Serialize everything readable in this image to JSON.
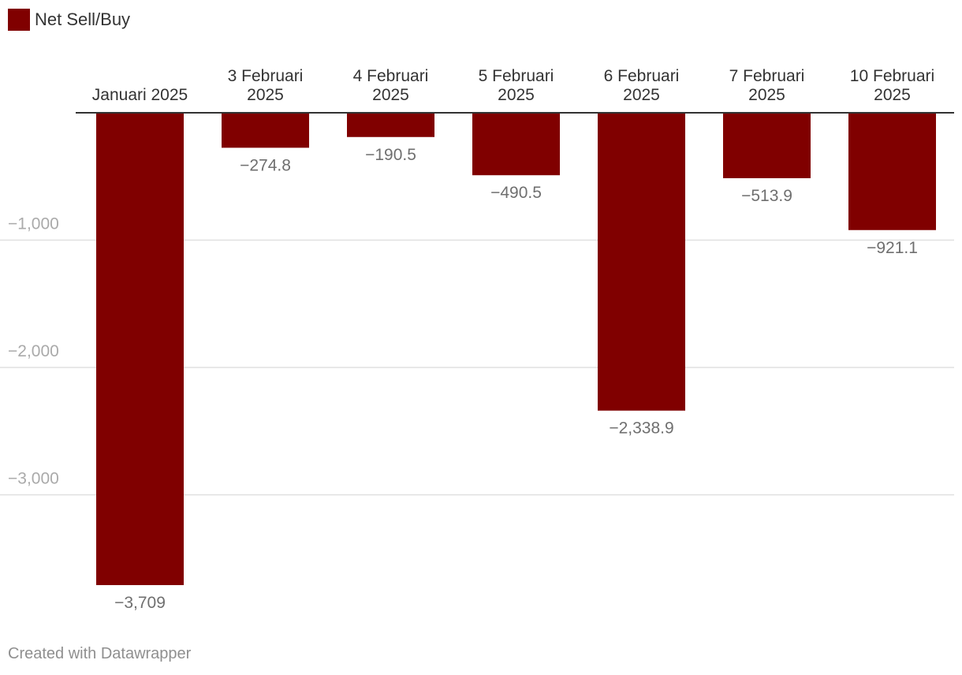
{
  "chart_data": {
    "type": "bar",
    "categories": [
      [
        "Januari 2025"
      ],
      [
        "3 Februari",
        "2025"
      ],
      [
        "4 Februari",
        "2025"
      ],
      [
        "5 Februari",
        "2025"
      ],
      [
        "6 Februari",
        "2025"
      ],
      [
        "7 Februari",
        "2025"
      ],
      [
        "10 Februari",
        "2025"
      ]
    ],
    "series": [
      {
        "name": "Net Sell/Buy",
        "values": [
          -3709,
          -274.8,
          -190.5,
          -490.5,
          -2338.9,
          -513.9,
          -921.1
        ],
        "labels": [
          "−3,709",
          "−274.8",
          "−190.5",
          "−490.5",
          "−2,338.9",
          "−513.9",
          "−921.1"
        ]
      }
    ],
    "yticks": [
      -1000,
      -2000,
      -3000
    ],
    "ytick_labels": [
      "−1,000",
      "−2,000",
      "−3,000"
    ],
    "ylim": [
      -3709,
      0
    ],
    "grid": true,
    "legend_placement": "top-left"
  },
  "colors": {
    "bar": "#800000",
    "grid": "#e0e0e0",
    "baseline": "#333333",
    "category_text": "#333333",
    "value_label": "#6f6f6f",
    "tick_label": "#aaaaaa",
    "footer_text": "#8f8f8f"
  },
  "legend": {
    "label": "Net Sell/Buy"
  },
  "footer": {
    "text": "Created with Datawrapper"
  }
}
